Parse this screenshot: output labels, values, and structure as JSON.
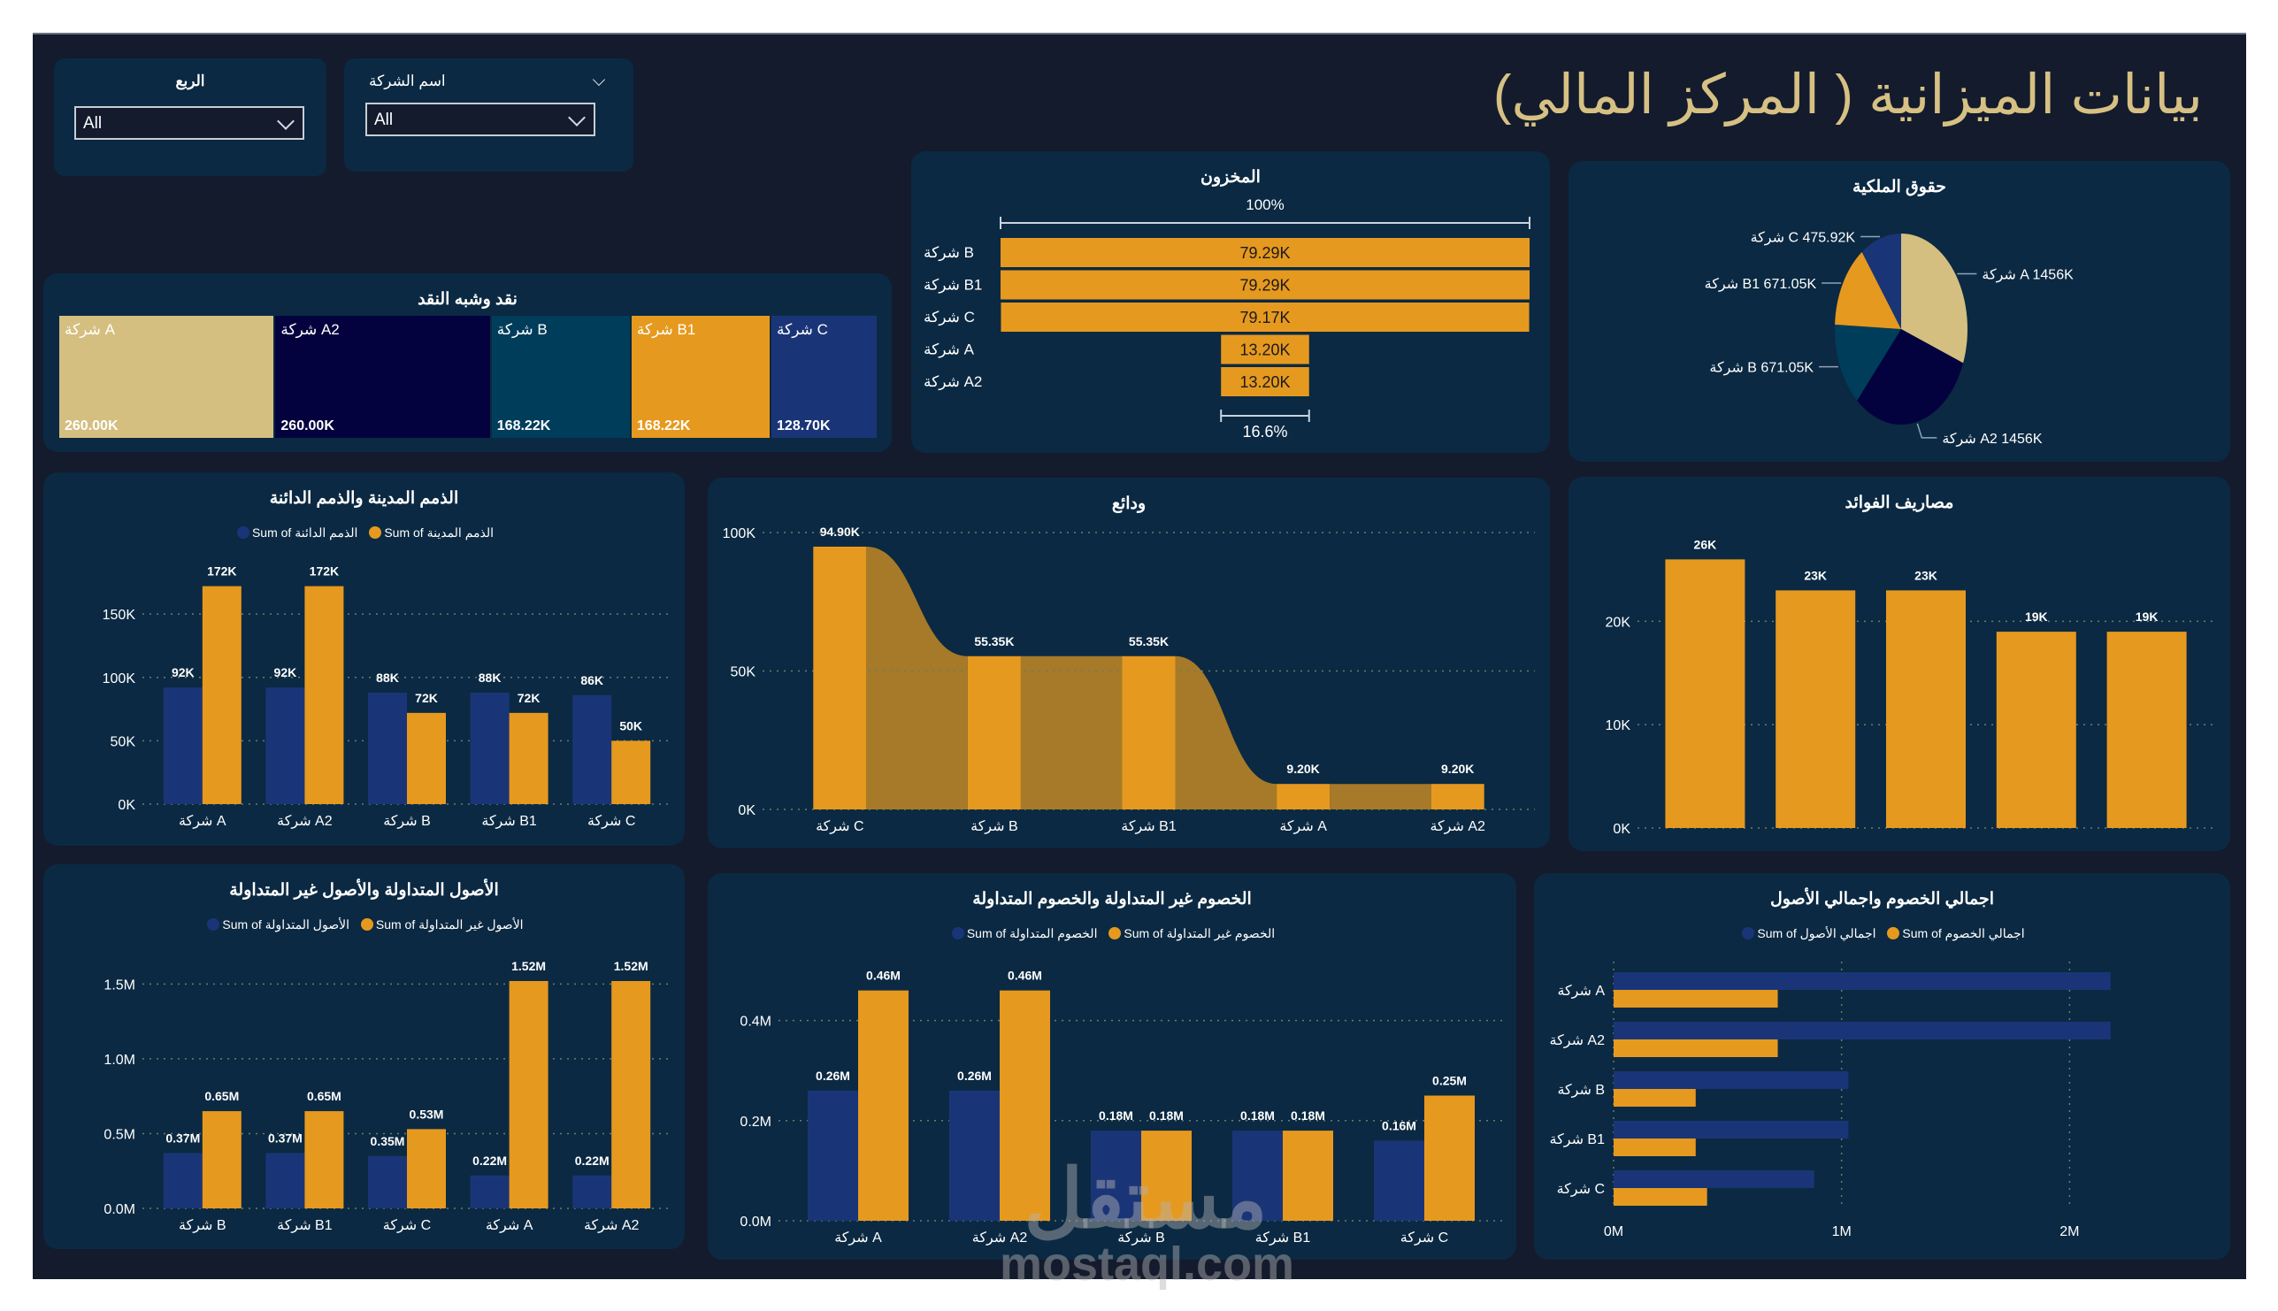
{
  "page": {
    "title": "بيانات الميزانية ( المركز المالي)",
    "colors": {
      "frame": "#131b2d",
      "panel": "#0b2942",
      "orange": "#e6991f",
      "navy": "#1a3577",
      "tan": "#d4bf80",
      "dark_navy": "#03023f",
      "teal": "#003d5b",
      "title_gold": "#d6c083"
    }
  },
  "slicers": [
    {
      "title": "الربع",
      "value": "All",
      "icon": "chevron-down-icon"
    },
    {
      "title": "اسم الشركة",
      "value": "All",
      "icon": "chevron-down-icon",
      "header_icon": "chevron-down-icon"
    }
  ],
  "watermark": {
    "arabic": "مستقل",
    "latin": "mostaql.com"
  },
  "chart_data": [
    {
      "id": "cash",
      "type": "treemap",
      "title": "نقد وشبه النقد",
      "categories": [
        "شركة A",
        "شركة A2",
        "شركة B",
        "شركة B1",
        "شركة C"
      ],
      "values": [
        260000,
        260000,
        168220,
        168220,
        128700
      ],
      "labels": [
        "260.00K",
        "260.00K",
        "168.22K",
        "168.22K",
        "128.70K"
      ],
      "colors": [
        "#d4bf80",
        "#03023f",
        "#003d5b",
        "#e6991f",
        "#1a3577"
      ]
    },
    {
      "id": "inventory",
      "type": "funnel",
      "title": "المخزون",
      "categories": [
        "شركة B",
        "شركة B1",
        "شركة C",
        "شركة A",
        "شركة A2"
      ],
      "values": [
        79290,
        79290,
        79170,
        13200,
        13200
      ],
      "labels": [
        "79.29K",
        "79.29K",
        "79.17K",
        "13.20K",
        "13.20K"
      ],
      "top_percent": "100%",
      "bottom_percent": "16.6%"
    },
    {
      "id": "equity",
      "type": "pie",
      "title": "حقوق الملكية",
      "categories": [
        "شركة A",
        "شركة A2",
        "شركة B",
        "شركة B1",
        "شركة C"
      ],
      "values": [
        1456000,
        1456000,
        671050,
        671050,
        475920
      ],
      "labels": [
        "شركة A 1456K",
        "شركة A2 1456K",
        "شركة B 671.05K",
        "شركة B1 671.05K",
        "شركة C 475.92K"
      ],
      "colors": [
        "#d4bf80",
        "#03023f",
        "#003d5b",
        "#e6991f",
        "#1a3577"
      ]
    },
    {
      "id": "receivables",
      "type": "bar",
      "title": "الذمم المدينة والذمم الدائنة",
      "categories": [
        "شركة A",
        "شركة A2",
        "شركة B",
        "شركة B1",
        "شركة C"
      ],
      "series": [
        {
          "name": "Sum of الذمم الدائنة",
          "values": [
            92000,
            92000,
            88000,
            88000,
            86000
          ],
          "labels": [
            "92K",
            "92K",
            "88K",
            "88K",
            "86K"
          ],
          "color": "#1a3577"
        },
        {
          "name": "Sum of الذمم المدينة",
          "values": [
            172000,
            172000,
            72000,
            72000,
            50000
          ],
          "labels": [
            "172K",
            "172K",
            "72K",
            "72K",
            "50K"
          ],
          "color": "#e6991f"
        }
      ],
      "yticks": [
        "0K",
        "50K",
        "100K",
        "150K"
      ],
      "ytick_values": [
        0,
        50000,
        100000,
        150000
      ],
      "ylim": [
        0,
        185000
      ],
      "grid": true,
      "legend": "top-center"
    },
    {
      "id": "deposits",
      "type": "bar",
      "title": "ودائع",
      "categories": [
        "شركة C",
        "شركة B",
        "شركة B1",
        "شركة A",
        "شركة A2"
      ],
      "values": [
        94900,
        55350,
        55350,
        9200,
        9200
      ],
      "labels": [
        "94.90K",
        "55.35K",
        "55.35K",
        "9.20K",
        "9.20K"
      ],
      "yticks": [
        "0K",
        "50K",
        "100K"
      ],
      "ytick_values": [
        0,
        50000,
        100000
      ],
      "ylim": [
        0,
        100000
      ],
      "grid": true,
      "ribbon": true
    },
    {
      "id": "interest",
      "type": "bar",
      "title": "مصاريف الفوائد",
      "categories": [
        "",
        "",
        "",
        "",
        ""
      ],
      "values": [
        26000,
        23000,
        23000,
        19000,
        19000
      ],
      "labels": [
        "26K",
        "23K",
        "23K",
        "19K",
        "19K"
      ],
      "yticks": [
        "0K",
        "10K",
        "20K"
      ],
      "ytick_values": [
        0,
        10000,
        20000
      ],
      "ylim": [
        0,
        28000
      ],
      "grid": true
    },
    {
      "id": "assets",
      "type": "bar",
      "title": "الأصول المتداولة والأصول غير المتداولة",
      "categories": [
        "شركة B",
        "شركة B1",
        "شركة C",
        "شركة A",
        "شركة A2"
      ],
      "series": [
        {
          "name": "Sum of الأصول المتداولة",
          "values": [
            370000,
            370000,
            350000,
            220000,
            220000
          ],
          "labels": [
            "0.37M",
            "0.37M",
            "0.35M",
            "0.22M",
            "0.22M"
          ],
          "color": "#1a3577"
        },
        {
          "name": "Sum of الأصول غير المتداولة",
          "values": [
            650000,
            650000,
            530000,
            1520000,
            1520000
          ],
          "labels": [
            "0.65M",
            "0.65M",
            "0.53M",
            "1.52M",
            "1.52M"
          ],
          "color": "#e6991f"
        }
      ],
      "yticks": [
        "0.0M",
        "0.5M",
        "1.0M",
        "1.5M"
      ],
      "ytick_values": [
        0,
        500000,
        1000000,
        1500000
      ],
      "ylim": [
        0,
        1650000
      ],
      "grid": true,
      "legend": "top-center"
    },
    {
      "id": "liabilities",
      "type": "bar",
      "title": "الخصوم غير المتداولة والخصوم المتداولة",
      "categories": [
        "شركة A",
        "شركة A2",
        "شركة B",
        "شركة B1",
        "شركة C"
      ],
      "series": [
        {
          "name": "Sum of الخصوم المتداولة",
          "values": [
            260000,
            260000,
            180000,
            180000,
            160000
          ],
          "labels": [
            "0.26M",
            "0.26M",
            "0.18M",
            "0.18M",
            "0.16M"
          ],
          "color": "#1a3577"
        },
        {
          "name": "Sum of الخصوم غير المتداولة",
          "values": [
            460000,
            460000,
            180000,
            180000,
            250000
          ],
          "labels": [
            "0.46M",
            "0.46M",
            "0.18M",
            "0.18M",
            "0.25M"
          ],
          "color": "#e6991f"
        }
      ],
      "yticks": [
        "0.0M",
        "0.2M",
        "0.4M"
      ],
      "ytick_values": [
        0,
        200000,
        400000
      ],
      "ylim": [
        0,
        500000
      ],
      "grid": true,
      "legend": "top-center"
    },
    {
      "id": "totals",
      "type": "hbar",
      "title": "اجمالي الخصوم واجمالي الأصول",
      "categories": [
        "شركة A",
        "شركة A2",
        "شركة B",
        "شركة B1",
        "شركة C"
      ],
      "series": [
        {
          "name": "Sum of اجمالي الأصول",
          "values": [
            2180000,
            2180000,
            1030000,
            1030000,
            880000
          ],
          "color": "#1a3577"
        },
        {
          "name": "Sum of اجمالي الخصوم",
          "values": [
            720000,
            720000,
            360000,
            360000,
            410000
          ],
          "color": "#e6991f"
        }
      ],
      "xticks": [
        "0M",
        "1M",
        "2M"
      ],
      "xtick_values": [
        0,
        1000000,
        2000000
      ],
      "xlim": [
        0,
        2600000
      ],
      "grid": true,
      "legend": "top-center"
    }
  ]
}
